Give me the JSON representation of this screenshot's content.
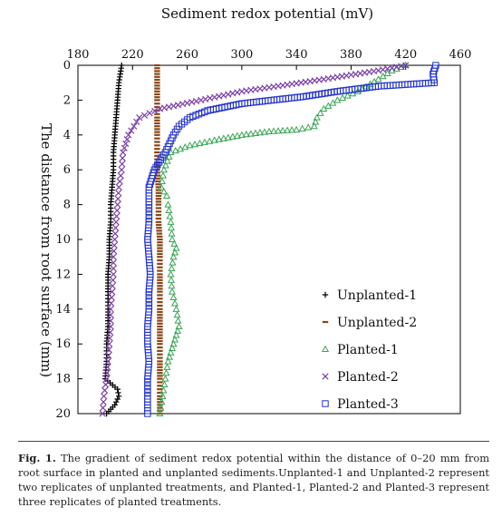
{
  "chart_data": {
    "type": "scatter",
    "xlabel": "Sediment redox potential (mV)",
    "ylabel": "The distance from root surface (mm)",
    "xlim": [
      180,
      460
    ],
    "ylim": [
      0,
      20
    ],
    "x_ticks": [
      180,
      220,
      260,
      300,
      340,
      380,
      420,
      460
    ],
    "y_ticks": [
      0,
      2,
      4,
      6,
      8,
      10,
      12,
      14,
      16,
      18,
      20
    ],
    "y_inverted": true,
    "x_axis_position": "top",
    "grid": false,
    "legend_position": "bottom-right",
    "series": [
      {
        "name": "Unplanted-1",
        "marker": "plus",
        "color": "#000000",
        "points": [
          [
            212,
            0
          ],
          [
            211,
            0.5
          ],
          [
            210,
            1
          ],
          [
            209,
            2
          ],
          [
            208,
            3
          ],
          [
            207,
            4
          ],
          [
            206,
            5
          ],
          [
            206,
            6
          ],
          [
            205,
            7
          ],
          [
            204,
            8
          ],
          [
            204,
            9
          ],
          [
            203,
            10
          ],
          [
            203,
            11
          ],
          [
            202,
            12
          ],
          [
            202,
            13
          ],
          [
            202,
            14
          ],
          [
            202,
            15
          ],
          [
            201,
            16
          ],
          [
            201,
            17
          ],
          [
            200,
            18
          ],
          [
            209,
            18.6
          ],
          [
            210,
            19
          ],
          [
            207,
            19.5
          ],
          [
            201,
            20
          ]
        ]
      },
      {
        "name": "Unplanted-2",
        "marker": "dash",
        "color": "#8b4513",
        "points": [
          [
            238,
            0
          ],
          [
            238,
            1
          ],
          [
            238,
            2
          ],
          [
            238,
            3
          ],
          [
            238,
            4
          ],
          [
            238,
            5
          ],
          [
            238,
            6
          ],
          [
            239,
            7
          ],
          [
            239,
            8
          ],
          [
            239,
            9
          ],
          [
            240,
            10
          ],
          [
            240,
            11
          ],
          [
            240,
            12
          ],
          [
            240,
            13
          ],
          [
            240,
            14
          ],
          [
            240,
            15
          ],
          [
            240,
            16
          ],
          [
            240,
            17
          ],
          [
            240,
            18
          ],
          [
            240,
            19
          ],
          [
            240,
            20
          ]
        ]
      },
      {
        "name": "Planted-1",
        "marker": "triangle",
        "color": "#3aa655",
        "points": [
          [
            420,
            0
          ],
          [
            410,
            0.3
          ],
          [
            400,
            0.8
          ],
          [
            385,
            1.5
          ],
          [
            370,
            2
          ],
          [
            360,
            2.5
          ],
          [
            355,
            3
          ],
          [
            353,
            3.5
          ],
          [
            340,
            3.7
          ],
          [
            320,
            3.8
          ],
          [
            300,
            4
          ],
          [
            280,
            4.3
          ],
          [
            262,
            4.6
          ],
          [
            248,
            5
          ],
          [
            243,
            6
          ],
          [
            241,
            7
          ],
          [
            245,
            7.5
          ],
          [
            246,
            8
          ],
          [
            248,
            9
          ],
          [
            249,
            10
          ],
          [
            252,
            10.5
          ],
          [
            250,
            11
          ],
          [
            248,
            12
          ],
          [
            249,
            13
          ],
          [
            252,
            14
          ],
          [
            254,
            15
          ],
          [
            250,
            16
          ],
          [
            246,
            17
          ],
          [
            244,
            18
          ],
          [
            242,
            19
          ],
          [
            240,
            20
          ]
        ]
      },
      {
        "name": "Planted-2",
        "marker": "x",
        "color": "#7b3fa8",
        "points": [
          [
            420,
            0
          ],
          [
            400,
            0.3
          ],
          [
            360,
            0.8
          ],
          [
            300,
            1.5
          ],
          [
            270,
            2
          ],
          [
            240,
            2.5
          ],
          [
            225,
            3
          ],
          [
            217,
            4
          ],
          [
            213,
            5
          ],
          [
            212,
            6
          ],
          [
            210,
            7
          ],
          [
            209,
            8
          ],
          [
            208,
            9
          ],
          [
            207,
            10
          ],
          [
            206,
            11
          ],
          [
            206,
            12
          ],
          [
            205,
            13
          ],
          [
            204,
            14
          ],
          [
            204,
            15
          ],
          [
            203,
            16
          ],
          [
            202,
            17
          ],
          [
            201,
            18
          ],
          [
            199,
            19
          ],
          [
            198,
            20
          ]
        ]
      },
      {
        "name": "Planted-3",
        "marker": "square",
        "color": "#2233cc",
        "points": [
          [
            442,
            0
          ],
          [
            440,
            0.5
          ],
          [
            441,
            1
          ],
          [
            400,
            1.2
          ],
          [
            370,
            1.5
          ],
          [
            345,
            1.8
          ],
          [
            300,
            2.2
          ],
          [
            275,
            2.6
          ],
          [
            262,
            3
          ],
          [
            254,
            3.5
          ],
          [
            250,
            4
          ],
          [
            244,
            5
          ],
          [
            236,
            6
          ],
          [
            232,
            7
          ],
          [
            232,
            8
          ],
          [
            232,
            9
          ],
          [
            231,
            10
          ],
          [
            232,
            11
          ],
          [
            233,
            12
          ],
          [
            232,
            13
          ],
          [
            232,
            14
          ],
          [
            231,
            15
          ],
          [
            231,
            16
          ],
          [
            232,
            17
          ],
          [
            231,
            18
          ],
          [
            231,
            19
          ],
          [
            231,
            20
          ]
        ]
      }
    ]
  },
  "legend": {
    "items": [
      {
        "label": "Unplanted-1",
        "marker": "plus",
        "color": "#000000"
      },
      {
        "label": "Unplanted-2",
        "marker": "dash",
        "color": "#8b4513"
      },
      {
        "label": "Planted-1",
        "marker": "triangle",
        "color": "#3aa655"
      },
      {
        "label": "Planted-2",
        "marker": "x",
        "color": "#7b3fa8"
      },
      {
        "label": "Planted-3",
        "marker": "square",
        "color": "#2233cc"
      }
    ]
  },
  "caption": {
    "label": "Fig. 1.",
    "text": "The gradient of sediment redox potential within the distance of 0–20 mm from root surface in planted and unplanted sediments.Unplanted-1 and Unplanted-2 represent two replicates of unplanted treatments, and Planted-1, Planted-2 and Planted-3 represent three replicates of planted treatments."
  }
}
